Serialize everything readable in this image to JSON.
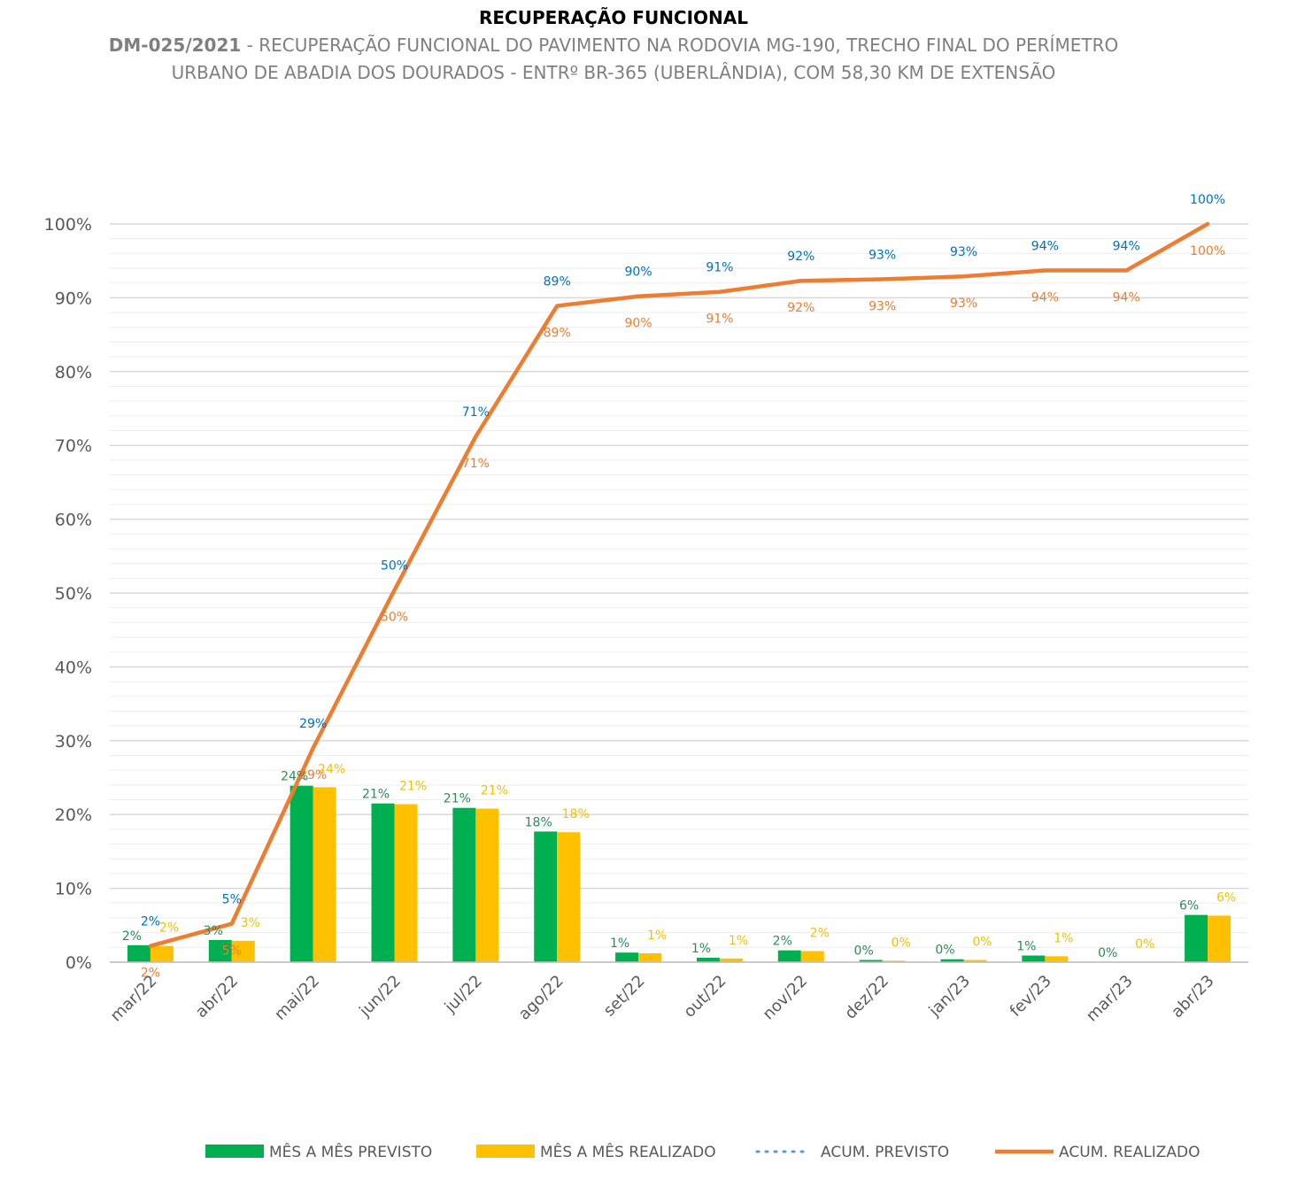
{
  "chart_data": {
    "type": "bar+line",
    "title": "RECUPERAÇÃO FUNCIONAL",
    "subtitle_code": "DM-025/2021",
    "subtitle_line1": " - RECUPERAÇÃO FUNCIONAL DO PAVIMENTO NA RODOVIA MG-190, TRECHO FINAL DO PERÍMETRO",
    "subtitle_line2": "URBANO DE ABADIA DOS DOURADOS - ENTRº BR-365 (UBERLÂNDIA), COM 58,30 KM DE EXTENSÃO",
    "categories": [
      "mar/22",
      "abr/22",
      "mai/22",
      "jun/22",
      "jul/22",
      "ago/22",
      "set/22",
      "out/22",
      "nov/22",
      "dez/22",
      "jan/23",
      "fev/23",
      "mar/23",
      "abr/23"
    ],
    "ylim": [
      0,
      1
    ],
    "yticks": [
      0,
      0.1,
      0.2,
      0.3,
      0.4,
      0.5,
      0.6,
      0.7,
      0.8,
      0.9,
      1.0
    ],
    "ytick_labels": [
      "0%",
      "10%",
      "20%",
      "30%",
      "40%",
      "50%",
      "60%",
      "70%",
      "80%",
      "90%",
      "100%"
    ],
    "grid": true,
    "legend_position": "bottom",
    "series": [
      {
        "name": "MÊS A MÊS PREVISTO",
        "kind": "bar",
        "color": "#00b050",
        "values": [
          0.023,
          0.03,
          0.239,
          0.215,
          0.209,
          0.177,
          0.013,
          0.006,
          0.016,
          0.003,
          0.004,
          0.009,
          0.0,
          0.064
        ],
        "labels": [
          "2%",
          "3%",
          "24%",
          "21%",
          "21%",
          "18%",
          "1%",
          "1%",
          "2%",
          "0%",
          "0%",
          "1%",
          "0%",
          "6%"
        ]
      },
      {
        "name": "MÊS A MÊS REALIZADO",
        "kind": "bar",
        "color": "#ffc000",
        "values": [
          0.022,
          0.029,
          0.237,
          0.214,
          0.208,
          0.176,
          0.012,
          0.005,
          0.015,
          0.002,
          0.003,
          0.008,
          0.0,
          0.063
        ],
        "labels": [
          "2%",
          "3%",
          "24%",
          "21%",
          "21%",
          "18%",
          "1%",
          "1%",
          "2%",
          "0%",
          "0%",
          "1%",
          "0%",
          "6%"
        ]
      },
      {
        "name": "ACUM. PREVISTO",
        "kind": "line",
        "style": "dotted",
        "color": "#5b9bd5",
        "label_color": "#0070c0",
        "values": [
          0.022,
          0.052,
          0.29,
          0.504,
          0.712,
          0.889,
          0.902,
          0.908,
          0.923,
          0.925,
          0.929,
          0.937,
          0.937,
          1.0
        ],
        "labels": [
          "2%",
          "5%",
          "29%",
          "50%",
          "71%",
          "89%",
          "90%",
          "91%",
          "92%",
          "93%",
          "93%",
          "94%",
          "94%",
          "100%"
        ]
      },
      {
        "name": "ACUM. REALIZADO",
        "kind": "line",
        "style": "solid",
        "color": "#ed7d31",
        "label_color": "#ed7d31",
        "values": [
          0.022,
          0.052,
          0.29,
          0.504,
          0.712,
          0.889,
          0.902,
          0.908,
          0.923,
          0.925,
          0.929,
          0.937,
          0.937,
          1.0
        ],
        "labels": [
          "2%",
          "5%",
          "29%",
          "50%",
          "71%",
          "89%",
          "90%",
          "91%",
          "92%",
          "93%",
          "93%",
          "94%",
          "94%",
          "100%"
        ]
      }
    ]
  }
}
